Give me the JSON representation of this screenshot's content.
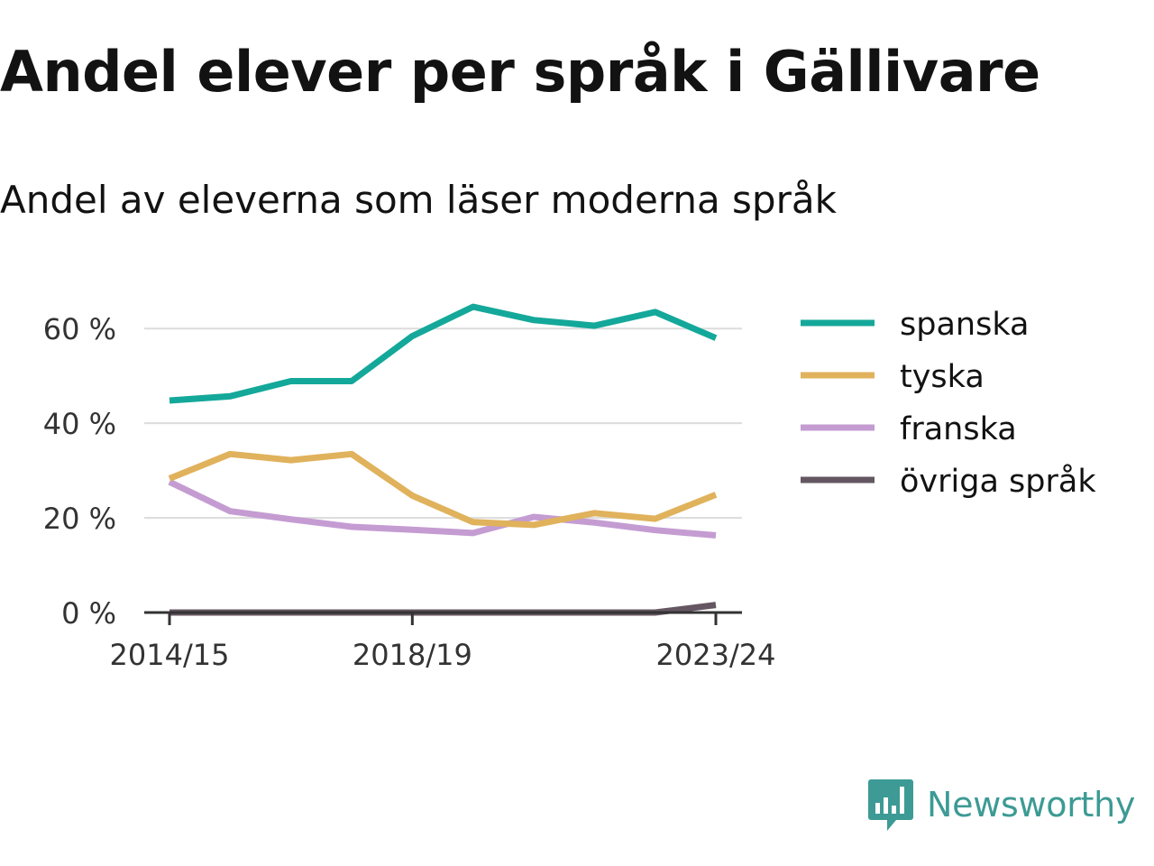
{
  "title": "Andel elever per språk i Gällivare",
  "subtitle": "Andel av eleverna som läser moderna språk",
  "brand": {
    "name": "Newsworthy",
    "color": "#3d9a94",
    "icon": "bar-chart-speech-bubble-icon"
  },
  "chart_data": {
    "type": "line",
    "x": [
      "2014/15",
      "2015/16",
      "2016/17",
      "2017/18",
      "2018/19",
      "2019/20",
      "2020/21",
      "2021/22",
      "2022/23",
      "2023/24"
    ],
    "x_tick_labels": [
      "2014/15",
      "2018/19",
      "2023/24"
    ],
    "y_ticks": [
      0,
      20,
      40,
      60
    ],
    "y_tick_labels": [
      "0 %",
      "20 %",
      "40 %",
      "60 %"
    ],
    "ylim": [
      0,
      65
    ],
    "y_unit": "%",
    "grid": "horizontal",
    "legend": "right",
    "series": [
      {
        "name": "spanska",
        "color": "#14a89a",
        "values": [
          44.8,
          45.7,
          48.9,
          48.9,
          58.4,
          64.6,
          61.8,
          60.6,
          63.5,
          58.0
        ]
      },
      {
        "name": "tyska",
        "color": "#e0b25c",
        "values": [
          28.3,
          33.5,
          32.2,
          33.5,
          24.7,
          19.1,
          18.5,
          21.0,
          19.8,
          24.9
        ]
      },
      {
        "name": "franska",
        "color": "#c49cd2",
        "values": [
          27.6,
          21.4,
          19.7,
          18.1,
          17.5,
          16.8,
          20.2,
          19.0,
          17.4,
          16.3
        ]
      },
      {
        "name": "övriga språk",
        "color": "#655762",
        "values": [
          0,
          0,
          0,
          0,
          0,
          0,
          0,
          0,
          0,
          1.6
        ]
      }
    ]
  }
}
